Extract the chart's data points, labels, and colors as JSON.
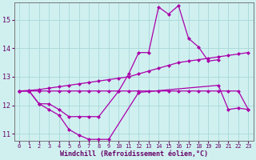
{
  "xlabel": "Windchill (Refroidissement éolien,°C)",
  "background_color": "#d0f0f0",
  "line_color": "#aa00aa",
  "grid_color": "#b0dede",
  "xlim": [
    -0.5,
    23.5
  ],
  "ylim": [
    10.75,
    15.6
  ],
  "yticks": [
    11,
    12,
    13,
    14,
    15
  ],
  "xticks": [
    0,
    1,
    2,
    3,
    4,
    5,
    6,
    7,
    8,
    9,
    10,
    11,
    12,
    13,
    14,
    15,
    16,
    17,
    18,
    19,
    20,
    21,
    22,
    23
  ],
  "line1_x": [
    0,
    1,
    2,
    3,
    4,
    5,
    6,
    7,
    8,
    9,
    12,
    20,
    21,
    22,
    23
  ],
  "line1_y": [
    12.5,
    12.5,
    12.05,
    11.85,
    11.65,
    11.15,
    10.95,
    10.8,
    10.8,
    10.8,
    12.45,
    12.7,
    11.85,
    11.9,
    11.85
  ],
  "line2_x": [
    0,
    1,
    2,
    3,
    4,
    5,
    6,
    7,
    8,
    10,
    11,
    12,
    13,
    14,
    15,
    16,
    17,
    18,
    19,
    20
  ],
  "line2_y": [
    12.5,
    12.5,
    12.05,
    12.05,
    11.85,
    11.6,
    11.6,
    11.6,
    11.6,
    12.5,
    13.1,
    13.85,
    13.85,
    15.45,
    15.2,
    15.5,
    14.35,
    14.05,
    13.55,
    13.6
  ],
  "line3_x": [
    0,
    1,
    2,
    3,
    4,
    5,
    6,
    7,
    8,
    9,
    10,
    11,
    12,
    13,
    14,
    15,
    16,
    17,
    18,
    19,
    20,
    21,
    22,
    23
  ],
  "line3_y": [
    12.5,
    12.52,
    12.55,
    12.6,
    12.65,
    12.7,
    12.75,
    12.8,
    12.85,
    12.9,
    12.95,
    13.0,
    13.1,
    13.2,
    13.3,
    13.4,
    13.5,
    13.55,
    13.6,
    13.65,
    13.7,
    13.75,
    13.8,
    13.85
  ],
  "line4_x": [
    0,
    1,
    2,
    3,
    4,
    5,
    6,
    7,
    8,
    9,
    10,
    11,
    12,
    13,
    14,
    15,
    16,
    17,
    18,
    19,
    20,
    21,
    22,
    23
  ],
  "line4_y": [
    12.5,
    12.5,
    12.5,
    12.5,
    12.5,
    12.5,
    12.5,
    12.5,
    12.5,
    12.5,
    12.5,
    12.5,
    12.5,
    12.5,
    12.5,
    12.5,
    12.5,
    12.5,
    12.5,
    12.5,
    12.5,
    12.5,
    12.5,
    11.85
  ]
}
